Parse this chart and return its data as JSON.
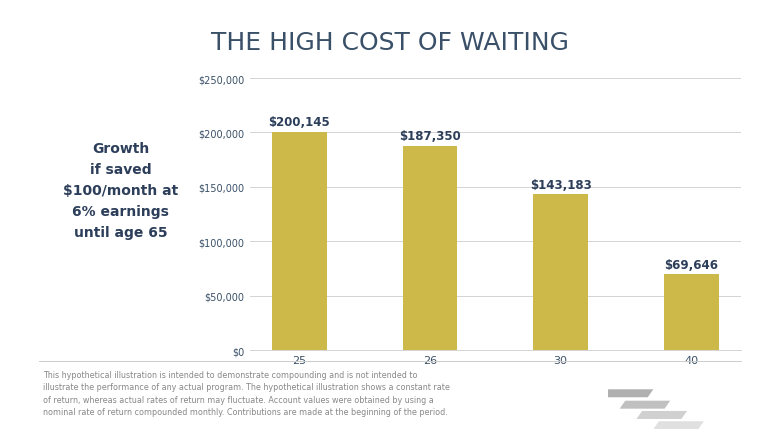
{
  "title": "THE HIGH COST OF WAITING",
  "title_fontsize": 18,
  "title_color": "#3a5068",
  "title_fontweight": "normal",
  "background_color": "#ffffff",
  "categories": [
    "25",
    "26",
    "30",
    "40"
  ],
  "values": [
    200145,
    187350,
    143183,
    69646
  ],
  "bar_labels": [
    "$200,145",
    "$187,350",
    "$143,183",
    "$69,646"
  ],
  "bar_color": "#cdb94a",
  "bar_label_color": "#2c3e5a",
  "bar_label_fontsize": 8.5,
  "bar_label_fontweight": "bold",
  "ylim": [
    0,
    250000
  ],
  "yticks": [
    0,
    50000,
    100000,
    150000,
    200000,
    250000
  ],
  "ytick_labels": [
    "$0",
    "$50,000",
    "$100,000",
    "$150,000",
    "$200,000",
    "$250,000"
  ],
  "tick_color": "#3a5068",
  "tick_fontsize": 7,
  "xtick_fontsize": 8,
  "grid_color": "#cccccc",
  "side_text_lines": [
    "Growth",
    "if saved",
    "$100/month at",
    "6% earnings",
    "until age 65"
  ],
  "side_text_color": "#2c3e5a",
  "side_text_fontsize": 10,
  "side_text_fontweight": "bold",
  "footnote": "This hypothetical illustration is intended to demonstrate compounding and is not intended to\nillustrate the performance of any actual program. The hypothetical illustration shows a constant rate\nof return, whereas actual rates of return may fluctuate. Account values were obtained by using a\nnominal rate of return compounded monthly. Contributions are made at the beginning of the period.",
  "footnote_fontsize": 5.8,
  "footnote_color": "#888888",
  "logo_colors": [
    "#b0b0b0",
    "#c0c0c0",
    "#d0d0d0",
    "#e0e0e0"
  ]
}
